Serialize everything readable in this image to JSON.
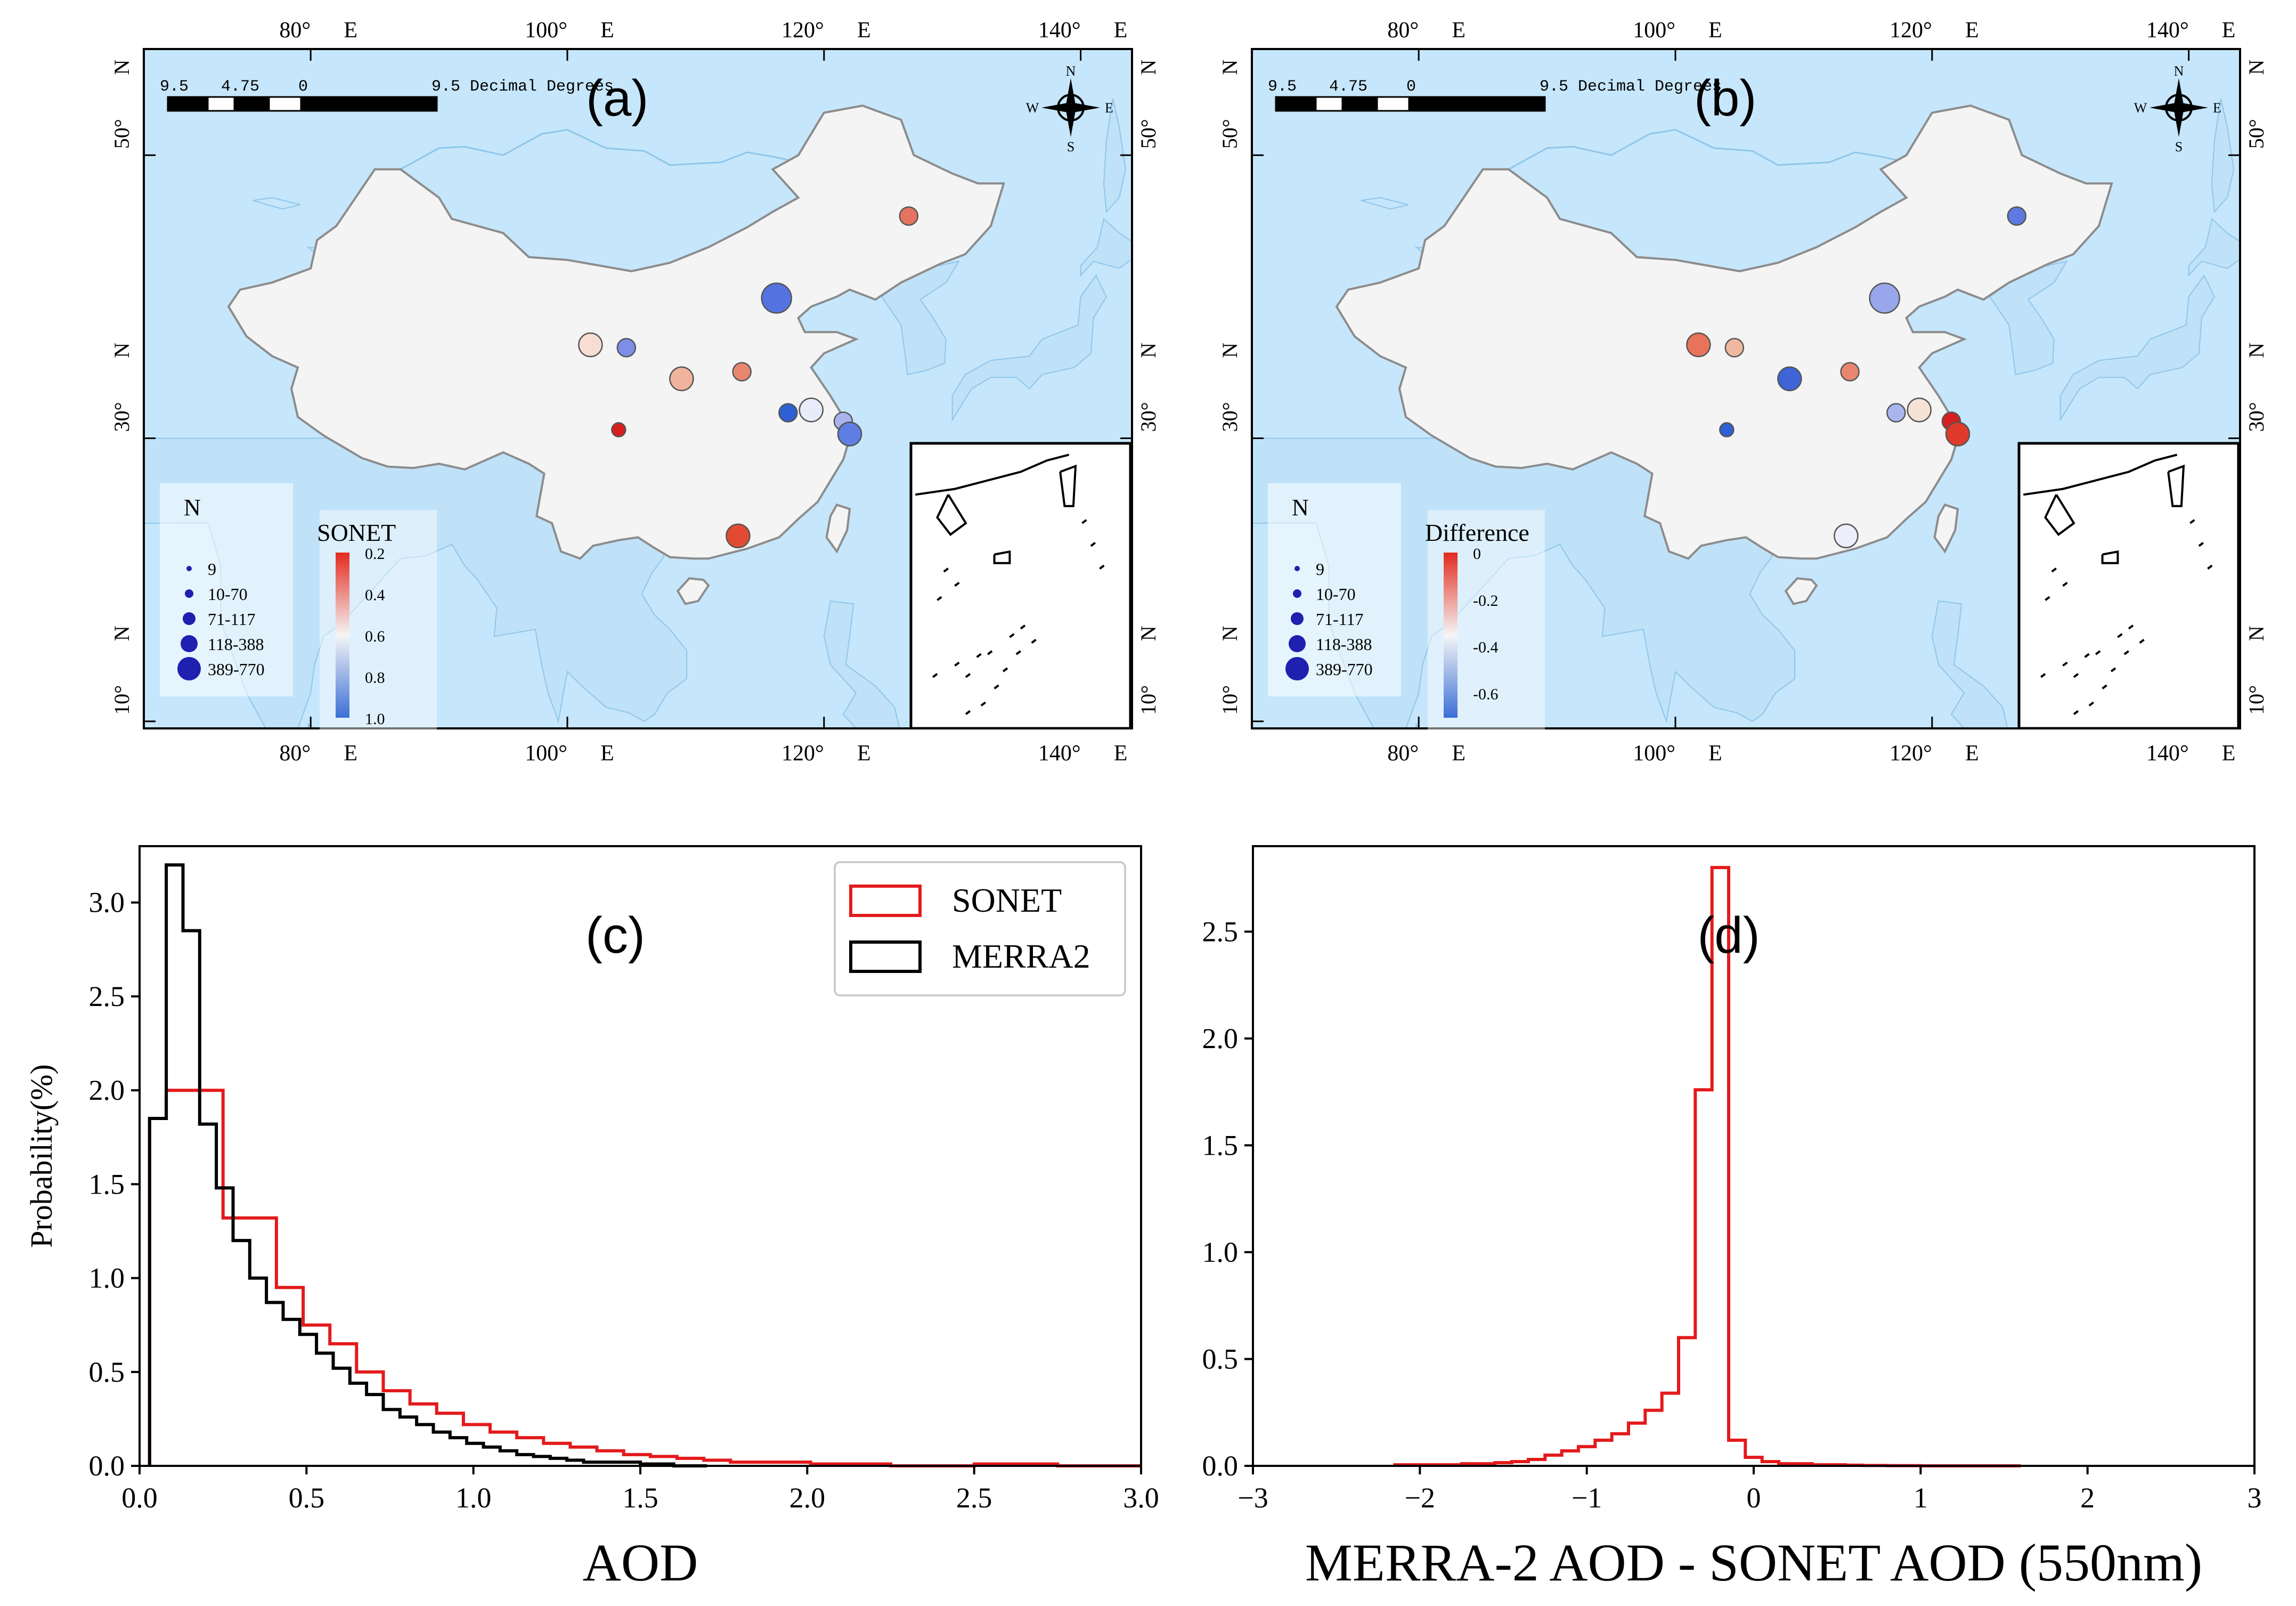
{
  "map_a": {
    "panel_label": "(a)",
    "lon_ticks": [
      "80°",
      "100°",
      "120°",
      "140°"
    ],
    "lon_suffix": "E",
    "lat_ticks": [
      "50°",
      "30°",
      "10°"
    ],
    "lat_suffix": "N",
    "scalebar_labels": [
      "9.5",
      "4.75",
      "0",
      "9.5 Decimal Degrees"
    ],
    "compass": {
      "n": "N",
      "s": "S",
      "w": "W",
      "e": "E"
    },
    "size_legend": {
      "title": "N",
      "labels": [
        "9",
        "10-70",
        "71-117",
        "118-388",
        "389-770"
      ]
    },
    "colorbar": {
      "title": "SONET",
      "ticks": [
        "0.2",
        "0.4",
        "0.6",
        "0.8",
        "1.0"
      ],
      "top_color": "#e32a1f",
      "mid_color": "#f5f5f5",
      "bottom_color": "#3c6fd6"
    },
    "stations": [
      {
        "lon": 126.6,
        "lat": 45.7,
        "size": 2,
        "color": "#e5735f"
      },
      {
        "lon": 101.8,
        "lat": 36.6,
        "size": 3,
        "color": "#f7ddd2"
      },
      {
        "lon": 104.6,
        "lat": 36.4,
        "size": 2,
        "color": "#7d8ee8"
      },
      {
        "lon": 116.3,
        "lat": 39.9,
        "size": 4,
        "color": "#5473e0"
      },
      {
        "lon": 108.9,
        "lat": 34.2,
        "size": 3,
        "color": "#f0b49e"
      },
      {
        "lon": 113.6,
        "lat": 34.7,
        "size": 2,
        "color": "#e88670"
      },
      {
        "lon": 117.2,
        "lat": 31.8,
        "size": 2,
        "color": "#2f5fd4"
      },
      {
        "lon": 119.0,
        "lat": 32.0,
        "size": 3,
        "color": "#e8ebfa"
      },
      {
        "lon": 121.5,
        "lat": 31.2,
        "size": 2,
        "color": "#a9b4ef"
      },
      {
        "lon": 122.0,
        "lat": 30.3,
        "size": 3,
        "color": "#5e7ee3"
      },
      {
        "lon": 104.0,
        "lat": 30.6,
        "size": 1,
        "color": "#d71f1f"
      },
      {
        "lon": 113.3,
        "lat": 23.1,
        "size": 3,
        "color": "#e34a33"
      }
    ]
  },
  "map_b": {
    "panel_label": "(b)",
    "lon_ticks": [
      "80°",
      "100°",
      "120°",
      "140°"
    ],
    "lon_suffix": "E",
    "lat_ticks": [
      "50°",
      "30°",
      "10°"
    ],
    "lat_suffix": "N",
    "scalebar_labels": [
      "9.5",
      "4.75",
      "0",
      "9.5 Decimal Degrees"
    ],
    "compass": {
      "n": "N",
      "s": "S",
      "w": "W",
      "e": "E"
    },
    "size_legend": {
      "title": "N",
      "labels": [
        "9",
        "10-70",
        "71-117",
        "118-388",
        "389-770"
      ]
    },
    "colorbar": {
      "title": "Difference",
      "ticks": [
        "0",
        "-0.2",
        "-0.4",
        "-0.6"
      ],
      "top_color": "#e32a1f",
      "mid_color": "#f5f5f5",
      "bottom_color": "#3c6fd6"
    },
    "stations": [
      {
        "lon": 126.6,
        "lat": 45.7,
        "size": 2,
        "color": "#5f79e0"
      },
      {
        "lon": 101.8,
        "lat": 36.6,
        "size": 3,
        "color": "#e8735a"
      },
      {
        "lon": 104.6,
        "lat": 36.4,
        "size": 2,
        "color": "#f0b8a0"
      },
      {
        "lon": 116.3,
        "lat": 39.9,
        "size": 4,
        "color": "#98a7ec"
      },
      {
        "lon": 108.9,
        "lat": 34.2,
        "size": 3,
        "color": "#3e64d8"
      },
      {
        "lon": 113.6,
        "lat": 34.7,
        "size": 2,
        "color": "#e88670"
      },
      {
        "lon": 117.2,
        "lat": 31.8,
        "size": 2,
        "color": "#aab5ef"
      },
      {
        "lon": 119.0,
        "lat": 32.0,
        "size": 3,
        "color": "#f7e3d6"
      },
      {
        "lon": 121.5,
        "lat": 31.2,
        "size": 2,
        "color": "#d52020"
      },
      {
        "lon": 122.0,
        "lat": 30.3,
        "size": 3,
        "color": "#e03b2a"
      },
      {
        "lon": 104.0,
        "lat": 30.6,
        "size": 1,
        "color": "#2f5fd4"
      },
      {
        "lon": 113.3,
        "lat": 23.1,
        "size": 3,
        "color": "#eceefb"
      }
    ]
  },
  "chart_data": [
    {
      "type": "histogram",
      "panel_label": "(c)",
      "xlabel": "AOD",
      "ylabel": "Probability(%)",
      "xlim": [
        0,
        3.0
      ],
      "ylim": [
        0,
        3.3
      ],
      "xticks": [
        "0.0",
        "0.5",
        "1.0",
        "1.5",
        "2.0",
        "2.5",
        "3.0"
      ],
      "yticks": [
        "0.0",
        "0.5",
        "1.0",
        "1.5",
        "2.0",
        "2.5",
        "3.0"
      ],
      "legend": {
        "position": "top-right",
        "entries": [
          "SONET",
          "MERRA2"
        ]
      },
      "series": [
        {
          "name": "SONET",
          "color": "#e31a1c",
          "bin_edges": [
            0.03,
            0.08,
            0.16,
            0.25,
            0.33,
            0.41,
            0.49,
            0.57,
            0.65,
            0.73,
            0.81,
            0.89,
            0.97,
            1.05,
            1.13,
            1.21,
            1.29,
            1.37,
            1.45,
            1.53,
            1.61,
            1.69,
            1.77,
            1.85,
            1.93,
            2.01,
            2.25,
            2.5,
            2.75,
            3.0
          ],
          "values": [
            1.85,
            2.0,
            2.0,
            1.32,
            1.32,
            0.95,
            0.75,
            0.65,
            0.5,
            0.4,
            0.33,
            0.28,
            0.22,
            0.18,
            0.15,
            0.12,
            0.1,
            0.08,
            0.06,
            0.05,
            0.04,
            0.03,
            0.02,
            0.02,
            0.02,
            0.01,
            0.0,
            0.01,
            0.0
          ]
        },
        {
          "name": "MERRA2",
          "color": "#000000",
          "bin_edges": [
            0.03,
            0.08,
            0.13,
            0.18,
            0.23,
            0.28,
            0.33,
            0.38,
            0.43,
            0.48,
            0.53,
            0.58,
            0.63,
            0.68,
            0.73,
            0.78,
            0.83,
            0.88,
            0.93,
            0.98,
            1.03,
            1.08,
            1.13,
            1.18,
            1.23,
            1.28,
            1.33,
            1.4,
            1.5,
            1.6,
            1.7
          ],
          "values": [
            1.85,
            3.2,
            2.85,
            1.82,
            1.48,
            1.2,
            1.0,
            0.87,
            0.78,
            0.7,
            0.6,
            0.52,
            0.44,
            0.38,
            0.3,
            0.26,
            0.22,
            0.18,
            0.15,
            0.12,
            0.1,
            0.08,
            0.06,
            0.05,
            0.04,
            0.03,
            0.02,
            0.02,
            0.01,
            0.0
          ]
        }
      ]
    },
    {
      "type": "histogram",
      "panel_label": "(d)",
      "xlabel": "MERRA-2 AOD - SONET AOD (550nm)",
      "ylabel": "",
      "xlim": [
        -3,
        3
      ],
      "ylim": [
        0,
        2.9
      ],
      "xticks": [
        "−3",
        "−2",
        "−1",
        "0",
        "1",
        "2",
        "3"
      ],
      "yticks": [
        "0.0",
        "0.5",
        "1.0",
        "1.5",
        "2.0",
        "2.5"
      ],
      "series": [
        {
          "name": "MERRA-2 - SONET",
          "color": "#e31a1c",
          "bin_edges": [
            -2.15,
            -1.75,
            -1.55,
            -1.45,
            -1.35,
            -1.25,
            -1.15,
            -1.05,
            -0.95,
            -0.85,
            -0.75,
            -0.65,
            -0.55,
            -0.45,
            -0.35,
            -0.25,
            -0.15,
            -0.05,
            0.05,
            0.15,
            0.25,
            0.35,
            0.45,
            0.55,
            0.65,
            0.8,
            1.0,
            1.6
          ],
          "values": [
            0.005,
            0.01,
            0.015,
            0.02,
            0.03,
            0.05,
            0.07,
            0.09,
            0.12,
            0.15,
            0.2,
            0.26,
            0.34,
            0.6,
            1.76,
            2.8,
            0.12,
            0.04,
            0.02,
            0.01,
            0.01,
            0.005,
            0.005,
            0.003,
            0.002,
            0.001,
            0.0
          ]
        }
      ]
    }
  ]
}
